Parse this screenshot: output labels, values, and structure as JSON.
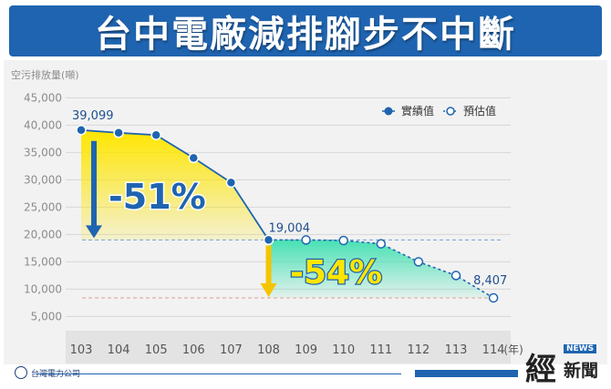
{
  "header": {
    "title": "台中電廠減排腳步不中斷"
  },
  "chart_data": {
    "type": "line",
    "ylabel": "空污排放量(噸)",
    "xlabel": "(年)",
    "ylim": [
      0,
      45000
    ],
    "yticks": [
      5000,
      10000,
      15000,
      20000,
      25000,
      30000,
      35000,
      40000,
      45000
    ],
    "ytick_labels": [
      "5,000",
      "10,000",
      "15,000",
      "20,000",
      "25,000",
      "30,000",
      "35,000",
      "40,000",
      "45,000"
    ],
    "categories": [
      "103",
      "104",
      "105",
      "106",
      "107",
      "108",
      "109",
      "110",
      "111",
      "112",
      "113",
      "114"
    ],
    "series": [
      {
        "name": "實績值",
        "x": [
          "103",
          "104",
          "105",
          "106",
          "107",
          "108"
        ],
        "values": [
          39099,
          38600,
          38200,
          34000,
          29500,
          19004
        ]
      },
      {
        "name": "預估值",
        "x": [
          "108",
          "109",
          "110",
          "111",
          "112",
          "113",
          "114"
        ],
        "values": [
          19004,
          19000,
          18900,
          18300,
          15000,
          12500,
          8407
        ]
      }
    ],
    "data_labels": [
      "39,099",
      "19,004",
      "8,407"
    ],
    "annotations": [
      "-51%",
      "-54%"
    ],
    "legend": "top-right",
    "colors": {
      "actual": "#1f64b0",
      "forecast": "#1f64b0",
      "yellow": "#ffe600",
      "green": "#3ee0b0",
      "arrow_blue": "#1f64b0",
      "arrow_yellow": "#f5c400",
      "ref_line_blue": "#6f9fd6",
      "ref_line_red": "#e0a08a"
    }
  },
  "footer": {
    "company": "台灣電力公司",
    "brand_main": "經",
    "brand_news": "NEWS",
    "brand_sub": "新聞"
  }
}
